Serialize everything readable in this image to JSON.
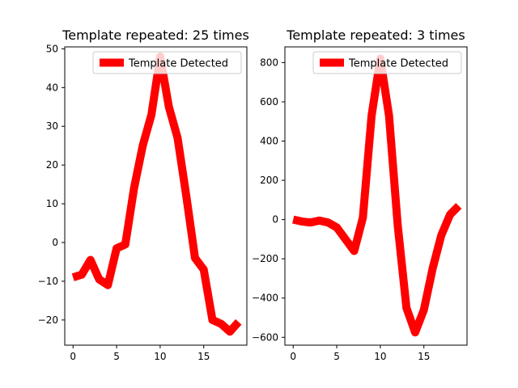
{
  "chart_data": [
    {
      "type": "line",
      "title": "Template repeated: 25 times",
      "xlabel": "",
      "ylabel": "",
      "xlim": [
        -0.95,
        19.95
      ],
      "ylim": [
        -26.5,
        50.5
      ],
      "xticks": [
        0,
        5,
        10,
        15
      ],
      "yticks": [
        -20,
        -10,
        0,
        10,
        20,
        30,
        40,
        50
      ],
      "grid": false,
      "legend": {
        "placement": "top-right",
        "entries": [
          "Template Detected"
        ]
      },
      "series": [
        {
          "name": "Template Detected",
          "color": "#ff0000",
          "x": [
            0,
            1,
            2,
            3,
            4,
            5,
            6,
            7,
            8,
            9,
            10,
            11,
            12,
            13,
            14,
            15,
            16,
            17,
            18,
            19
          ],
          "values": [
            -9,
            -8.3,
            -4.5,
            -9.5,
            -11,
            -1.5,
            -0.5,
            14,
            25,
            33,
            48,
            35,
            27,
            12,
            -4,
            -7,
            -20,
            -21,
            -23,
            -20.5
          ]
        }
      ]
    },
    {
      "type": "line",
      "title": "Template repeated: 3 times",
      "xlabel": "",
      "ylabel": "",
      "xlim": [
        -0.95,
        19.95
      ],
      "ylim": [
        -640,
        880
      ],
      "xticks": [
        0,
        5,
        10,
        15
      ],
      "yticks": [
        -600,
        -400,
        -200,
        0,
        200,
        400,
        600,
        800
      ],
      "grid": false,
      "legend": {
        "placement": "top-right",
        "entries": [
          "Template Detected"
        ]
      },
      "series": [
        {
          "name": "Template Detected",
          "color": "#ff0000",
          "x": [
            0,
            1,
            2,
            3,
            4,
            5,
            6,
            7,
            8,
            9,
            10,
            11,
            12,
            13,
            14,
            15,
            16,
            17,
            18,
            19
          ],
          "values": [
            0,
            -10,
            -15,
            -5,
            -15,
            -40,
            -100,
            -160,
            10,
            530,
            820,
            530,
            -30,
            -450,
            -575,
            -460,
            -250,
            -80,
            25,
            70
          ]
        }
      ]
    }
  ]
}
